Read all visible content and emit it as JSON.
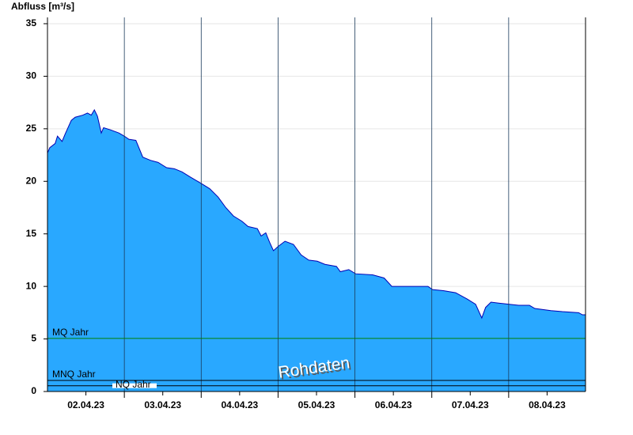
{
  "chart_data": {
    "type": "area",
    "y_axis_title": "Abfluss [m³/s]",
    "ylim": [
      0,
      35.6
    ],
    "yticks": [
      0,
      5,
      10,
      15,
      20,
      25,
      30,
      35
    ],
    "xlim": [
      0,
      7
    ],
    "xticks": [
      {
        "value": 0.5,
        "label": "02.04.23"
      },
      {
        "value": 1.5,
        "label": "03.04.23"
      },
      {
        "value": 2.5,
        "label": "04.04.23"
      },
      {
        "value": 3.5,
        "label": "05.04.23"
      },
      {
        "value": 4.5,
        "label": "06.04.23"
      },
      {
        "value": 5.5,
        "label": "07.04.23"
      },
      {
        "value": 6.5,
        "label": "08.04.23"
      }
    ],
    "day_lines": [
      1,
      2,
      3,
      4,
      5,
      6
    ],
    "grid": true,
    "series": [
      {
        "color": "#29a8ff",
        "line_color": "#0000b4",
        "x": [
          0,
          0.03,
          0.1,
          0.13,
          0.19,
          0.23,
          0.31,
          0.36,
          0.46,
          0.52,
          0.57,
          0.61,
          0.65,
          0.7,
          0.73,
          0.82,
          0.93,
          1.0,
          1.06,
          1.15,
          1.24,
          1.34,
          1.44,
          1.55,
          1.65,
          1.75,
          1.86,
          2.0,
          2.11,
          2.22,
          2.32,
          2.42,
          2.53,
          2.61,
          2.73,
          2.78,
          2.84,
          2.89,
          2.94,
          3.0,
          3.09,
          3.2,
          3.3,
          3.4,
          3.51,
          3.61,
          3.76,
          3.81,
          3.92,
          4.01,
          4.23,
          4.38,
          4.48,
          4.74,
          4.95,
          5.01,
          5.15,
          5.31,
          5.46,
          5.57,
          5.65,
          5.7,
          5.77,
          5.88,
          6.01,
          6.13,
          6.27,
          6.34,
          6.55,
          6.7,
          6.91,
          6.96,
          7.0
        ],
        "values": [
          22.7,
          23.2,
          23.6,
          24.3,
          23.8,
          24.5,
          25.8,
          26.1,
          26.3,
          26.5,
          26.3,
          26.8,
          26.2,
          24.6,
          25.1,
          24.9,
          24.6,
          24.3,
          24.0,
          23.9,
          22.3,
          22.0,
          21.8,
          21.3,
          21.2,
          20.9,
          20.4,
          19.8,
          19.3,
          18.5,
          17.5,
          16.7,
          16.2,
          15.7,
          15.5,
          14.8,
          15.1,
          14.2,
          13.4,
          13.8,
          14.3,
          14.0,
          13.0,
          12.5,
          12.4,
          12.1,
          11.9,
          11.4,
          11.6,
          11.2,
          11.1,
          10.8,
          10.0,
          10.0,
          10.0,
          9.7,
          9.6,
          9.4,
          8.8,
          8.3,
          7.0,
          8.0,
          8.5,
          8.4,
          8.3,
          8.2,
          8.2,
          7.9,
          7.7,
          7.6,
          7.5,
          7.3,
          7.3
        ]
      }
    ],
    "reference_lines": [
      {
        "label": "MQ Jahr",
        "value": 5.05,
        "color": "#008000"
      },
      {
        "label": "MNQ Jahr",
        "value": 1.05,
        "color": "#000000"
      },
      {
        "label": "NQ Jahr",
        "value": 0.55,
        "color": "#000000"
      }
    ],
    "watermark": "Rohdaten"
  }
}
